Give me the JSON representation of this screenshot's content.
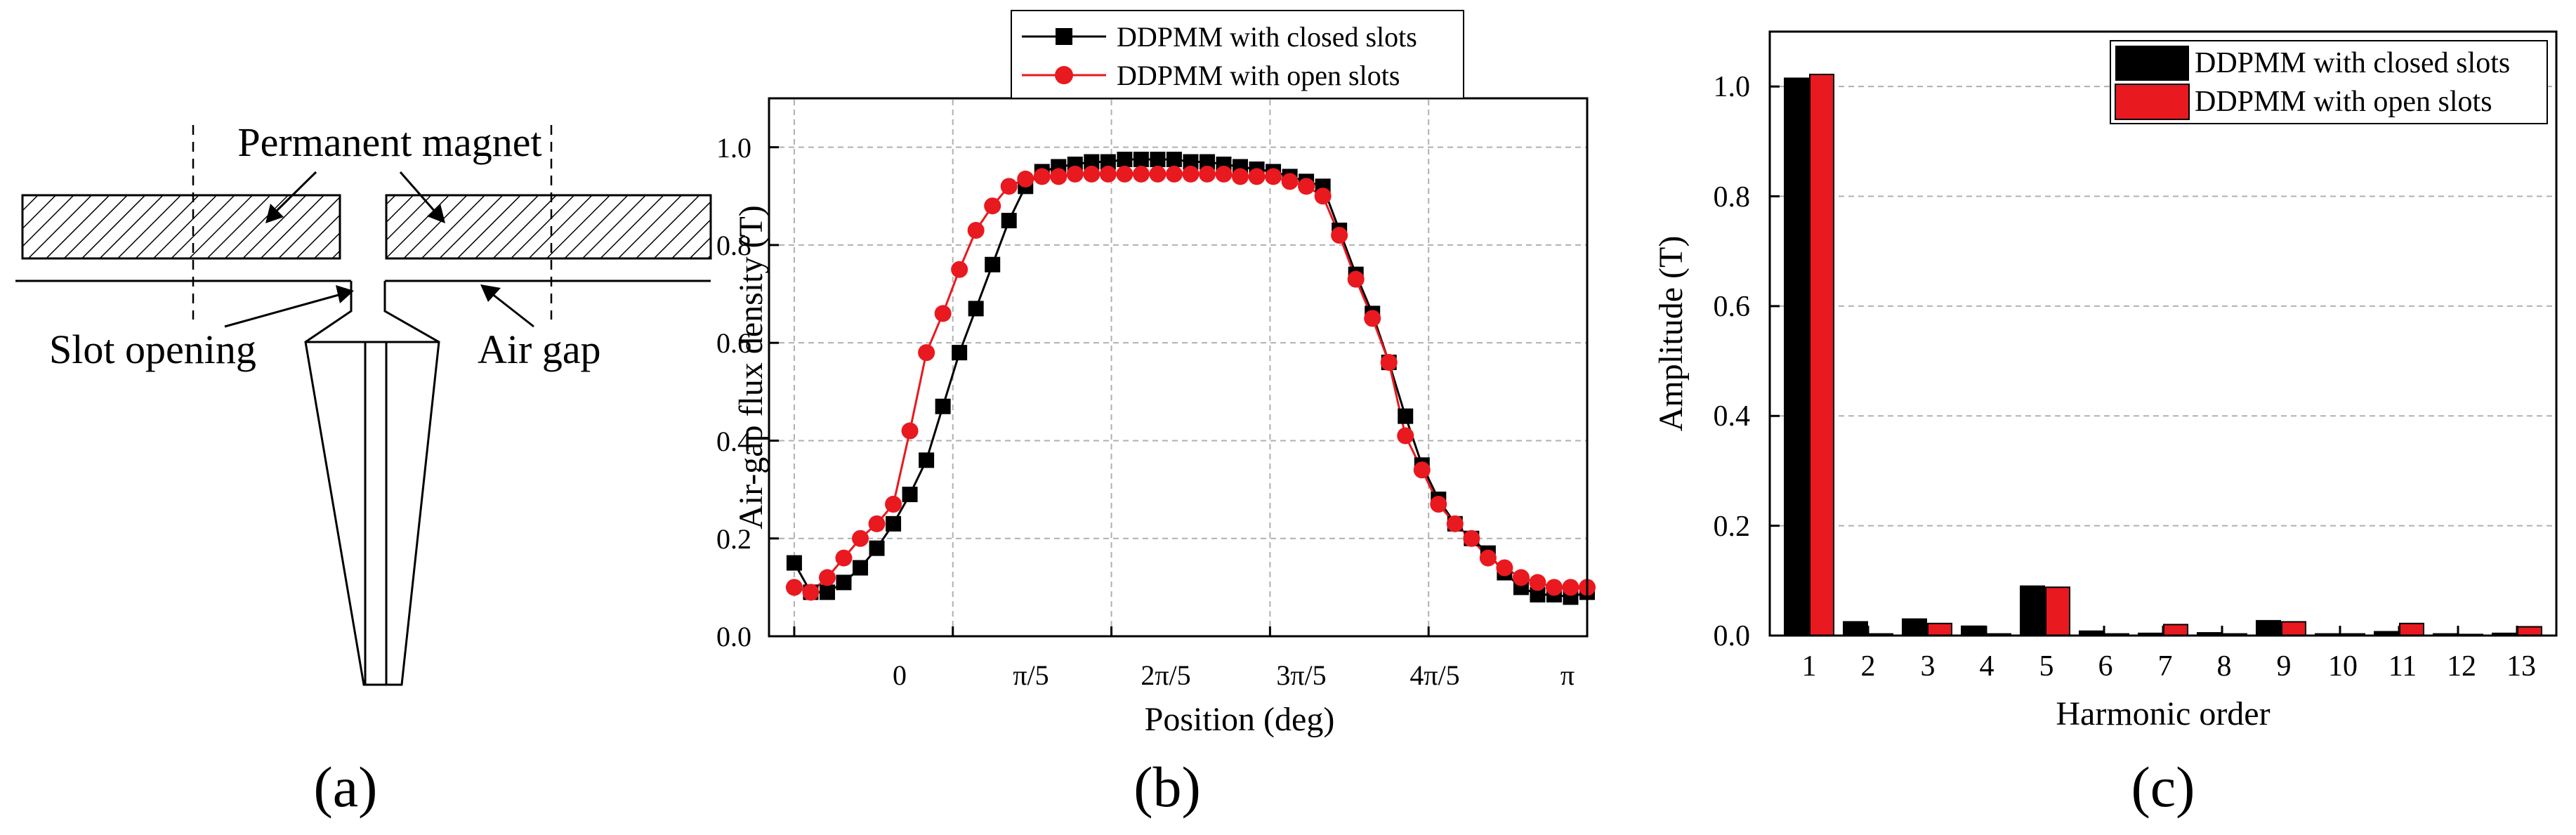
{
  "panel_a": {
    "caption": "(a)",
    "label_magnet": "Permanent magnet",
    "label_slot": "Slot opening",
    "label_airgap": "Air gap"
  },
  "colors": {
    "closed": "#000000",
    "open": "#e8191f",
    "grid": "#b0b0b0"
  },
  "chart_data": [
    {
      "type": "line",
      "caption": "(b)",
      "xlabel": "Position (deg)",
      "ylabel": "Air-gap flux density (T)",
      "xlim": [
        -0.1,
        3.1416
      ],
      "ylim": [
        0,
        1.1
      ],
      "xticks": [
        0,
        0.6283,
        1.2566,
        1.885,
        2.5133,
        3.1416
      ],
      "xtick_labels": [
        "0",
        "π/5",
        "2π/5",
        "3π/5",
        "4π/5",
        "π"
      ],
      "yticks": [
        0.0,
        0.2,
        0.4,
        0.6,
        0.8,
        1.0
      ],
      "ytick_labels": [
        "0.0",
        "0.2",
        "0.4",
        "0.6",
        "0.8",
        "1.0"
      ],
      "legend_position": "top-center-outside",
      "series": [
        {
          "name": "DDPMM with closed slots",
          "marker": "square",
          "x": [
            0,
            0.0654,
            0.1309,
            0.1963,
            0.2618,
            0.3272,
            0.3927,
            0.4581,
            0.5236,
            0.589,
            0.6545,
            0.7199,
            0.7854,
            0.8508,
            0.9163,
            0.9817,
            1.0472,
            1.1126,
            1.1781,
            1.2435,
            1.309,
            1.3744,
            1.4399,
            1.5053,
            1.5708,
            1.6362,
            1.7017,
            1.7671,
            1.8326,
            1.898,
            1.9635,
            2.0289,
            2.0944,
            2.1598,
            2.2253,
            2.2907,
            2.3562,
            2.4216,
            2.4871,
            2.5525,
            2.618,
            2.6834,
            2.7489,
            2.8143,
            2.8798,
            2.9452,
            3.0107,
            3.0761,
            3.1416
          ],
          "values": [
            0.15,
            0.09,
            0.09,
            0.11,
            0.14,
            0.18,
            0.23,
            0.29,
            0.36,
            0.47,
            0.58,
            0.67,
            0.76,
            0.85,
            0.92,
            0.95,
            0.96,
            0.965,
            0.97,
            0.97,
            0.975,
            0.975,
            0.975,
            0.975,
            0.97,
            0.97,
            0.965,
            0.96,
            0.955,
            0.95,
            0.94,
            0.93,
            0.92,
            0.83,
            0.74,
            0.66,
            0.56,
            0.45,
            0.35,
            0.28,
            0.23,
            0.2,
            0.17,
            0.13,
            0.1,
            0.085,
            0.085,
            0.08,
            0.09
          ]
        },
        {
          "name": "DDPMM with open slots",
          "marker": "circle",
          "x": [
            0,
            0.0654,
            0.1309,
            0.1963,
            0.2618,
            0.3272,
            0.3927,
            0.4581,
            0.5236,
            0.589,
            0.6545,
            0.7199,
            0.7854,
            0.8508,
            0.9163,
            0.9817,
            1.0472,
            1.1126,
            1.1781,
            1.2435,
            1.309,
            1.3744,
            1.4399,
            1.5053,
            1.5708,
            1.6362,
            1.7017,
            1.7671,
            1.8326,
            1.898,
            1.9635,
            2.0289,
            2.0944,
            2.1598,
            2.2253,
            2.2907,
            2.3562,
            2.4216,
            2.4871,
            2.5525,
            2.618,
            2.6834,
            2.7489,
            2.8143,
            2.8798,
            2.9452,
            3.0107,
            3.0761,
            3.1416
          ],
          "values": [
            0.1,
            0.09,
            0.12,
            0.16,
            0.2,
            0.23,
            0.27,
            0.42,
            0.58,
            0.66,
            0.75,
            0.83,
            0.88,
            0.92,
            0.935,
            0.94,
            0.94,
            0.945,
            0.945,
            0.945,
            0.945,
            0.945,
            0.945,
            0.945,
            0.945,
            0.945,
            0.945,
            0.94,
            0.94,
            0.94,
            0.93,
            0.92,
            0.9,
            0.82,
            0.73,
            0.65,
            0.56,
            0.41,
            0.34,
            0.27,
            0.23,
            0.2,
            0.16,
            0.14,
            0.12,
            0.11,
            0.1,
            0.1,
            0.1
          ]
        }
      ]
    },
    {
      "type": "bar",
      "caption": "(c)",
      "xlabel": "Harmonic order",
      "ylabel": "Amplitude (T)",
      "ylim": [
        0,
        1.1
      ],
      "yticks": [
        0.0,
        0.2,
        0.4,
        0.6,
        0.8,
        1.0
      ],
      "ytick_labels": [
        "0.0",
        "0.2",
        "0.4",
        "0.6",
        "0.8",
        "1.0"
      ],
      "categories": [
        "1",
        "2",
        "3",
        "4",
        "5",
        "6",
        "7",
        "8",
        "9",
        "10",
        "11",
        "12",
        "13"
      ],
      "legend_position": "top-right",
      "series": [
        {
          "name": "DDPMM with closed slots",
          "values": [
            1.015,
            0.025,
            0.03,
            0.017,
            0.09,
            0.008,
            0.004,
            0.005,
            0.027,
            0.003,
            0.007,
            0.003,
            0.004
          ]
        },
        {
          "name": "DDPMM with open slots",
          "values": [
            1.022,
            0.003,
            0.022,
            0.003,
            0.088,
            0.003,
            0.02,
            0.003,
            0.025,
            0.003,
            0.022,
            0.002,
            0.016
          ]
        }
      ]
    }
  ]
}
